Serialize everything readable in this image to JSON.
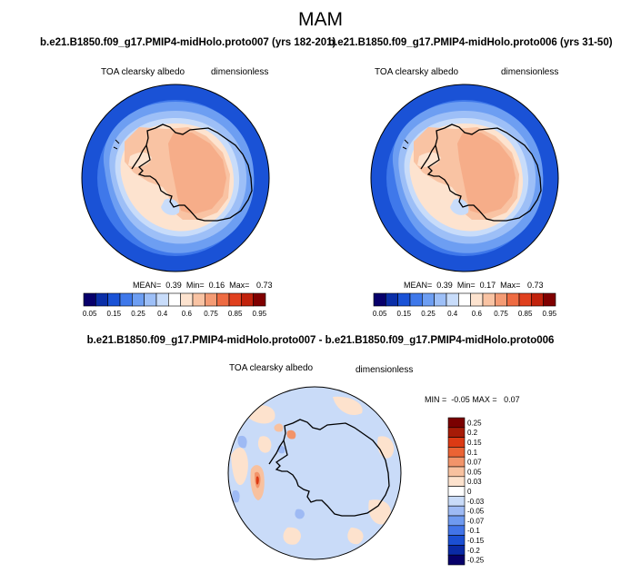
{
  "page": {
    "title": "MAM",
    "diff_title": "b.e21.B1850.f09_g17.PMIP4-midHolo.proto007 - b.e21.B1850.f09_g17.PMIP4-midHolo.proto006"
  },
  "panels": [
    {
      "title": "b.e21.B1850.f09_g17.PMIP4-midHolo.proto007 (yrs 182-201)",
      "variable": "TOA clearsky albedo",
      "units": "dimensionless",
      "stats": {
        "mean_label": "MEAN=",
        "mean": "0.39",
        "min_label": "Min=",
        "min": "0.16",
        "max_label": "Max=",
        "max": "0.73"
      }
    },
    {
      "title": "b.e21.B1850.f09_g17.PMIP4-midHolo.proto006 (yrs 31-50)",
      "variable": "TOA clearsky albedo",
      "units": "dimensionless",
      "stats": {
        "mean_label": "MEAN=",
        "mean": "0.39",
        "min_label": "Min=",
        "min": "0.17",
        "max_label": "Max=",
        "max": "0.73"
      }
    }
  ],
  "diff_panel": {
    "variable": "TOA clearsky albedo",
    "units": "dimensionless",
    "stats": {
      "min_label": "MIN =",
      "min": "-0.05",
      "max_label": "MAX =",
      "max": "0.07"
    }
  },
  "colorbar_abs": {
    "colors": [
      "#08006b",
      "#0b2fa8",
      "#1a52d6",
      "#3f78ea",
      "#6d9ef2",
      "#9dbff7",
      "#c8dcfa",
      "#ffffff",
      "#fde3cf",
      "#f9c3a3",
      "#f49b74",
      "#ee6b42",
      "#e0401e",
      "#c1220c",
      "#800000"
    ],
    "labels": [
      "0.05",
      "0.15",
      "0.25",
      "0.4",
      "0.6",
      "0.75",
      "0.85",
      "0.95"
    ]
  },
  "colorbar_diff": {
    "colors": [
      "#07006a",
      "#0a2aa6",
      "#1b4fd3",
      "#4274e8",
      "#6f9af0",
      "#9ebaf4",
      "#c9dbf8",
      "#ffffff",
      "#fde2cd",
      "#f8c19f",
      "#f2946a",
      "#eb6334",
      "#dc3a14",
      "#a61b07",
      "#7a0000"
    ],
    "labels": [
      "-0.25",
      "-0.2",
      "-0.15",
      "-0.1",
      "-0.07",
      "-0.05",
      "-0.03",
      "0",
      "0.03",
      "0.05",
      "0.07",
      "0.1",
      "0.15",
      "0.2",
      "0.25"
    ]
  }
}
